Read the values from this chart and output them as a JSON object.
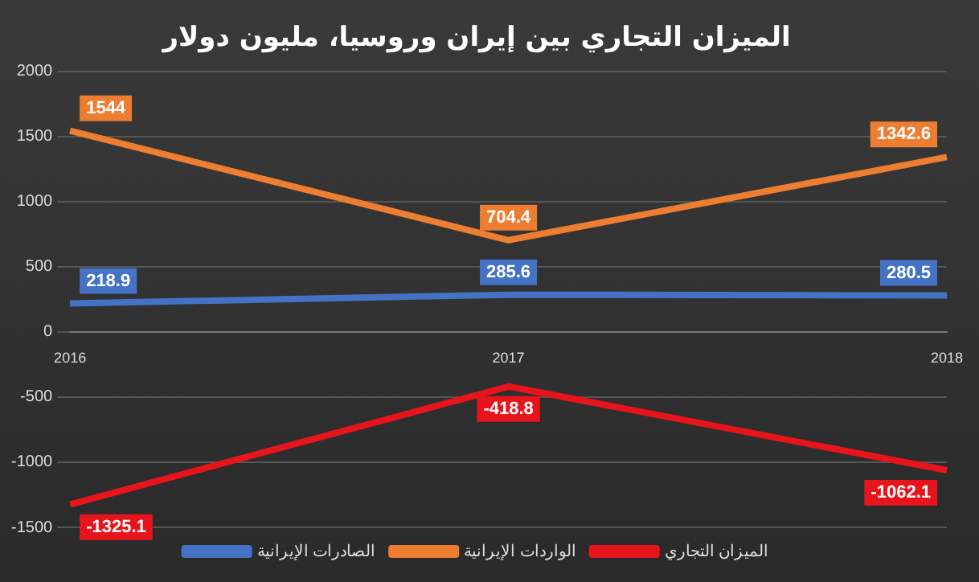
{
  "chart_data": {
    "type": "line",
    "title": "الميزان التجاري بين إيران وروسيا، مليون دولار",
    "categories": [
      "2016",
      "2017",
      "2018"
    ],
    "series": [
      {
        "name": "الصادرات الإيرانية",
        "color": "#4472c4",
        "values": [
          218.9,
          285.6,
          280.5
        ]
      },
      {
        "name": "الواردات الإيرانية",
        "color": "#ed7d31",
        "values": [
          1544,
          704.4,
          1342.6
        ]
      },
      {
        "name": "الميزان التجاري",
        "color": "#e8141c",
        "values": [
          -1325.1,
          -418.8,
          -1062.1
        ]
      }
    ],
    "ylim": [
      -1500,
      2000
    ],
    "yticks": [
      -1500,
      -1000,
      -500,
      0,
      500,
      1000,
      1500,
      2000
    ],
    "grid": "y",
    "legend": "bottom",
    "data_labels": true,
    "marker": "none",
    "line_style": "solid"
  }
}
